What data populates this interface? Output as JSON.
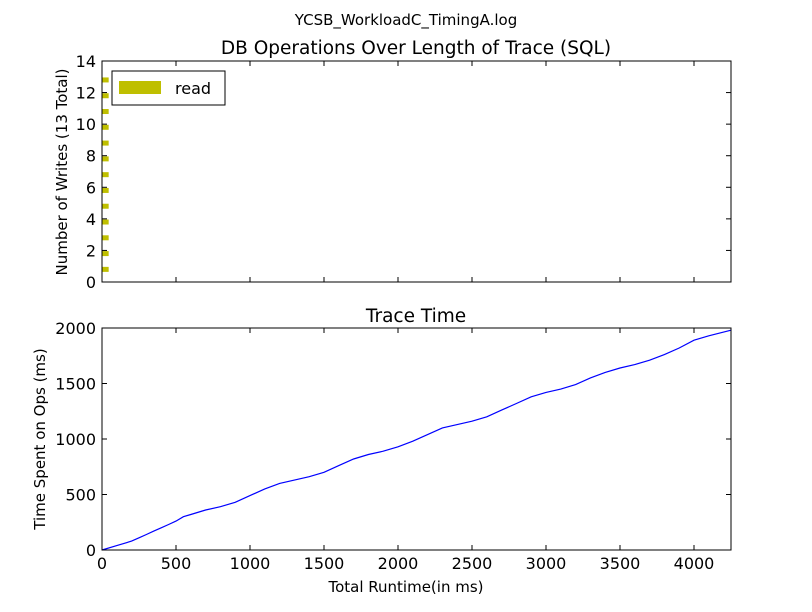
{
  "figure_title": "YCSB_WorkloadC_TimingA.log",
  "chart_data": [
    {
      "type": "bar",
      "orientation": "horizontal",
      "title": "DB Operations Over Length of Trace (SQL)",
      "xlabel": "",
      "ylabel": "Number of Writes (13 Total)",
      "xlim": [
        0,
        4250
      ],
      "ylim": [
        0,
        14
      ],
      "yticks": [
        "0",
        "2",
        "4",
        "6",
        "8",
        "10",
        "12",
        "14"
      ],
      "legend": {
        "position": "top-left",
        "entries": [
          "read"
        ]
      },
      "color": "#bfbf00",
      "bars": [
        {
          "y": 1,
          "x_start": 0,
          "width": 45
        },
        {
          "y": 2,
          "x_start": 0,
          "width": 45
        },
        {
          "y": 3,
          "x_start": 0,
          "width": 45
        },
        {
          "y": 4,
          "x_start": 0,
          "width": 45
        },
        {
          "y": 5,
          "x_start": 0,
          "width": 45
        },
        {
          "y": 6,
          "x_start": 0,
          "width": 45
        },
        {
          "y": 7,
          "x_start": 0,
          "width": 45
        },
        {
          "y": 8,
          "x_start": 0,
          "width": 45
        },
        {
          "y": 9,
          "x_start": 0,
          "width": 45
        },
        {
          "y": 10,
          "x_start": 0,
          "width": 45
        },
        {
          "y": 11,
          "x_start": 0,
          "width": 45
        },
        {
          "y": 12,
          "x_start": 0,
          "width": 45
        },
        {
          "y": 13,
          "x_start": 0,
          "width": 45
        }
      ]
    },
    {
      "type": "line",
      "title": "Trace Time",
      "xlabel": "Total Runtime(in ms)",
      "ylabel": "Time Spent on Ops (ms)",
      "xlim": [
        0,
        4250
      ],
      "ylim": [
        0,
        2000
      ],
      "xticks": [
        "0",
        "500",
        "1000",
        "1500",
        "2000",
        "2500",
        "3000",
        "3500",
        "4000"
      ],
      "yticks": [
        "0",
        "500",
        "1000",
        "1500",
        "2000"
      ],
      "color": "#0000ff",
      "x": [
        0,
        100,
        200,
        250,
        300,
        350,
        400,
        450,
        500,
        550,
        600,
        700,
        800,
        900,
        1000,
        1100,
        1200,
        1300,
        1400,
        1500,
        1600,
        1700,
        1800,
        1900,
        2000,
        2100,
        2200,
        2300,
        2400,
        2500,
        2600,
        2700,
        2800,
        2900,
        3000,
        3100,
        3200,
        3300,
        3400,
        3500,
        3600,
        3700,
        3800,
        3900,
        4000,
        4100,
        4250
      ],
      "y": [
        0,
        40,
        80,
        110,
        140,
        170,
        200,
        230,
        260,
        300,
        320,
        360,
        390,
        430,
        490,
        550,
        600,
        630,
        660,
        700,
        760,
        820,
        860,
        890,
        930,
        980,
        1040,
        1100,
        1130,
        1160,
        1200,
        1260,
        1320,
        1380,
        1420,
        1450,
        1490,
        1550,
        1600,
        1640,
        1670,
        1710,
        1760,
        1820,
        1890,
        1930,
        1980
      ]
    }
  ]
}
